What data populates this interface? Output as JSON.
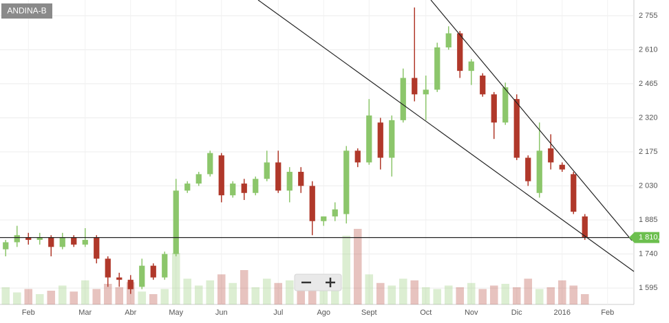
{
  "chart_data": {
    "type": "candlestick",
    "title": "ANDINA-B",
    "categories": [
      null,
      null,
      "Feb",
      null,
      null,
      null,
      null,
      "Mar",
      null,
      null,
      null,
      "Abr",
      null,
      null,
      null,
      "May",
      null,
      null,
      null,
      "Jun",
      null,
      null,
      null,
      null,
      "Jul",
      null,
      null,
      null,
      "Ago",
      null,
      null,
      null,
      "Sept",
      null,
      null,
      null,
      null,
      "Oct",
      null,
      null,
      null,
      "Nov",
      null,
      null,
      null,
      "Dic",
      null,
      null,
      null,
      "2016",
      null,
      null,
      null,
      "Feb",
      null,
      null
    ],
    "open": [
      1760,
      1790,
      1810,
      1800,
      1810,
      1770,
      1810,
      1780,
      1810,
      1720,
      1640,
      1630,
      1600,
      1690,
      1640,
      1740,
      2010,
      2040,
      2080,
      2160,
      1990,
      2040,
      2000,
      2060,
      2130,
      2010,
      2090,
      2030,
      1880,
      1900,
      1910,
      2180,
      2130,
      2300,
      2150,
      2310,
      2490,
      2420,
      2440,
      2620,
      2680,
      2520,
      2500,
      2420,
      2300,
      2400,
      2150,
      2000,
      2190,
      2120,
      2080,
      1900,
      null,
      null,
      null,
      null
    ],
    "high": [
      1800,
      1860,
      1830,
      1830,
      1820,
      1830,
      1820,
      1850,
      1820,
      1730,
      1660,
      1650,
      1720,
      1700,
      1750,
      2060,
      2050,
      2090,
      2180,
      2170,
      2050,
      2060,
      2070,
      2180,
      2180,
      2110,
      2110,
      2050,
      1900,
      1960,
      2200,
      2190,
      2400,
      2320,
      2330,
      2530,
      2790,
      2500,
      2640,
      2710,
      2690,
      2570,
      2510,
      2430,
      2470,
      2420,
      2160,
      2300,
      2250,
      2130,
      2090,
      1910,
      null,
      null,
      null,
      null
    ],
    "low": [
      1730,
      1770,
      1780,
      1780,
      1730,
      1760,
      1770,
      1770,
      1700,
      1600,
      1600,
      1570,
      1590,
      1630,
      1630,
      1730,
      2000,
      2030,
      2070,
      1960,
      1980,
      1970,
      1990,
      2050,
      2000,
      1960,
      2000,
      1820,
      1860,
      1880,
      1870,
      2110,
      2120,
      2100,
      2070,
      2300,
      2390,
      2310,
      2430,
      2610,
      2490,
      2460,
      2410,
      2230,
      2290,
      2140,
      2030,
      1980,
      2100,
      2090,
      1910,
      1800,
      null,
      null,
      null,
      null
    ],
    "close": [
      1790,
      1820,
      1800,
      1810,
      1770,
      1810,
      1780,
      1800,
      1720,
      1640,
      1630,
      1590,
      1690,
      1640,
      1740,
      2010,
      2040,
      2080,
      2170,
      1990,
      2040,
      2000,
      2060,
      2130,
      2010,
      2090,
      2030,
      1880,
      1900,
      1930,
      2180,
      2130,
      2330,
      2150,
      2310,
      2490,
      2420,
      2440,
      2620,
      2680,
      2520,
      2560,
      2420,
      2300,
      2450,
      2150,
      2050,
      2180,
      2130,
      2100,
      1920,
      1810,
      null,
      null,
      null,
      null
    ],
    "volume": [
      20,
      14,
      18,
      12,
      16,
      22,
      15,
      28,
      18,
      24,
      20,
      26,
      15,
      12,
      18,
      60,
      30,
      22,
      28,
      35,
      25,
      40,
      20,
      30,
      25,
      28,
      22,
      26,
      30,
      20,
      80,
      88,
      35,
      25,
      22,
      30,
      28,
      20,
      18,
      22,
      20,
      25,
      18,
      22,
      24,
      20,
      30,
      18,
      20,
      28,
      22,
      12,
      null,
      null,
      null,
      null
    ],
    "up_color": "#8cc66b",
    "down_color": "#b0382a",
    "ylim": [
      1525,
      2822
    ],
    "y2lim": [
      0,
      100
    ],
    "yticks": [
      {
        "value": 1595,
        "label": "1 595"
      },
      {
        "value": 1740,
        "label": "1 740"
      },
      {
        "value": 1885,
        "label": "1 885"
      },
      {
        "value": 2030,
        "label": "2 030"
      },
      {
        "value": 2175,
        "label": "2 175"
      },
      {
        "value": 2320,
        "label": "2 320"
      },
      {
        "value": 2465,
        "label": "2 465"
      },
      {
        "value": 2610,
        "label": "2 610"
      },
      {
        "value": 2755,
        "label": "2 755"
      }
    ],
    "last_price": {
      "value": 1810,
      "label": "1 810,00"
    },
    "grid": true
  }
}
